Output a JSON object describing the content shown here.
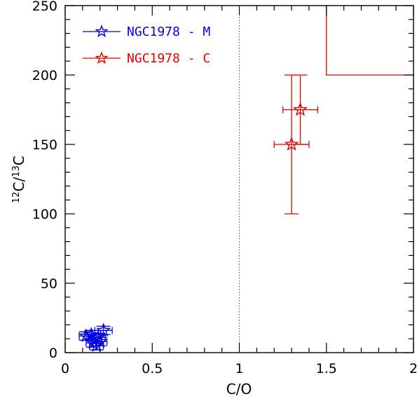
{
  "chart_data": {
    "type": "scatter",
    "title": "",
    "xlabel": "C/O",
    "ylabel": {
      "pre1": "12",
      "mid1": "C/",
      "pre2": "13",
      "mid2": "C"
    },
    "xlim": [
      0,
      2
    ],
    "ylim": [
      0,
      250
    ],
    "x_ticks": [
      0,
      0.5,
      1,
      1.5,
      2
    ],
    "x_tick_labels": [
      "0",
      "0.5",
      "1",
      "1.5",
      "2"
    ],
    "y_ticks": [
      0,
      50,
      100,
      150,
      200,
      250
    ],
    "y_tick_labels": [
      "0",
      "50",
      "100",
      "150",
      "200",
      "250"
    ],
    "reference_lines": [
      {
        "type": "vertical",
        "x": 1,
        "style": "dotted",
        "color": "#555555"
      }
    ],
    "region_boundary": {
      "color": "#e00000",
      "points": [
        [
          1.5,
          250
        ],
        [
          1.5,
          200
        ],
        [
          2,
          200
        ]
      ]
    },
    "legend": {
      "position": "top-left"
    },
    "series": [
      {
        "name": "NGC1978 - M",
        "color": "#0000e0",
        "marker": "star",
        "points": [
          {
            "x": 0.12,
            "y": 12,
            "xerr": 0.04,
            "yerr": 3
          },
          {
            "x": 0.15,
            "y": 13,
            "xerr": 0.04,
            "yerr": 3
          },
          {
            "x": 0.16,
            "y": 7,
            "xerr": 0.04,
            "yerr": 3
          },
          {
            "x": 0.17,
            "y": 10,
            "xerr": 0.04,
            "yerr": 3
          },
          {
            "x": 0.18,
            "y": 5,
            "xerr": 0.04,
            "yerr": 3
          },
          {
            "x": 0.19,
            "y": 11,
            "xerr": 0.04,
            "yerr": 3
          },
          {
            "x": 0.2,
            "y": 8,
            "xerr": 0.04,
            "yerr": 3
          },
          {
            "x": 0.22,
            "y": 16,
            "xerr": 0.05,
            "yerr": 3
          }
        ]
      },
      {
        "name": "NGC1978 - C",
        "color": "#e00000",
        "marker": "star",
        "points": [
          {
            "x": 1.3,
            "y": 150,
            "xerr": 0.1,
            "yerr": 50
          },
          {
            "x": 1.35,
            "y": 175,
            "xerr": 0.1,
            "yerr": 25
          }
        ]
      }
    ]
  }
}
